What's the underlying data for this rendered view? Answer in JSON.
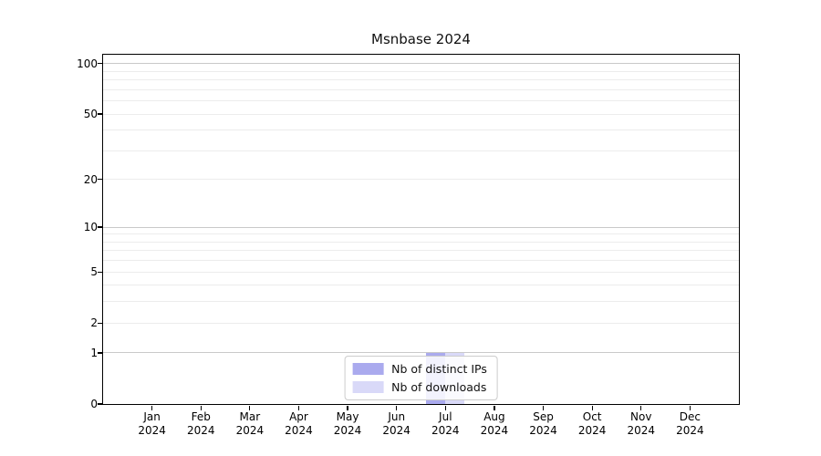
{
  "chart": {
    "title": "Msnbase 2024",
    "colors": {
      "grid_major": "#c9c9c9",
      "grid_minor": "#ececec",
      "frame": "#000000",
      "background": "#ffffff"
    },
    "legend": {
      "position": "lower center"
    }
  },
  "chart_data": {
    "type": "bar",
    "title": "Msnbase 2024",
    "xlabel": "",
    "ylabel": "",
    "x_tick_year": "2024",
    "categories": [
      "Jan",
      "Feb",
      "Mar",
      "Apr",
      "May",
      "Jun",
      "Jul",
      "Aug",
      "Sep",
      "Oct",
      "Nov",
      "Dec"
    ],
    "series": [
      {
        "name": "Nb of distinct IPs",
        "color": "#aaaaee",
        "values": [
          0,
          0,
          0,
          0,
          0,
          0,
          1,
          0,
          0,
          0,
          0,
          0
        ]
      },
      {
        "name": "Nb of downloads",
        "color": "#d9d9f8",
        "values": [
          0,
          0,
          0,
          0,
          0,
          0,
          1,
          0,
          0,
          0,
          0,
          0
        ]
      }
    ],
    "y_scale": "log1p",
    "y_ticks": [
      0,
      1,
      2,
      5,
      10,
      20,
      50,
      100
    ],
    "y_major_gridlines": [
      1,
      10,
      100
    ],
    "y_minor_gridlines": [
      2,
      3,
      4,
      5,
      6,
      7,
      8,
      9,
      20,
      30,
      40,
      50,
      60,
      70,
      80,
      90
    ],
    "ylim": [
      0,
      113
    ],
    "grid": "horizontal",
    "legend_position": "lower center"
  }
}
